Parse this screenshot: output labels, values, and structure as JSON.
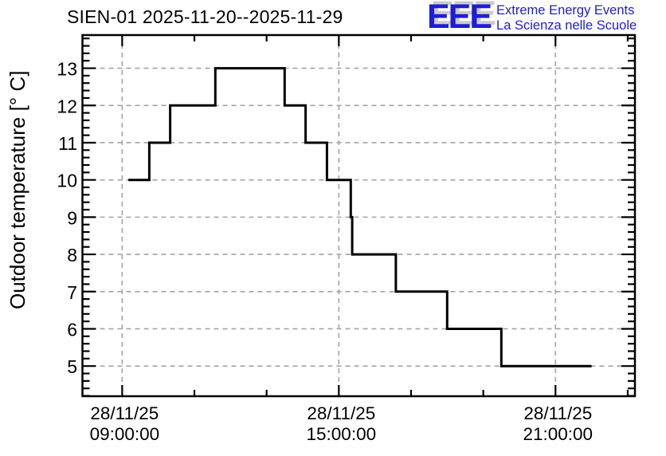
{
  "logo": {
    "acronym": "EEE",
    "line1": "Extreme Energy Events",
    "line2": "La Scienza nelle Scuole",
    "color": "#1d1dd6"
  },
  "chart_data": {
    "type": "line",
    "subtype": "step-after",
    "title": "SIEN-01 2025-11-20--2025-11-29",
    "station": "SIEN-01",
    "xlabel": "",
    "ylabel": "Outdoor temperature [° C]",
    "x_unit": "time of day on 28/11/25, decimal hours",
    "xlim": [
      7.9,
      23.2
    ],
    "ylim": [
      4.19,
      13.89
    ],
    "grid": true,
    "legend": false,
    "line_color": "#000000",
    "grid_color": "#a3a3a3",
    "y_major_ticks": [
      5,
      6,
      7,
      8,
      9,
      10,
      11,
      12,
      13
    ],
    "y_minor_step": 0.2,
    "x_minor_step_hours": 2,
    "x_major_ticks": [
      {
        "t": 9,
        "line1": "28/11/25",
        "line2": "09:00:00"
      },
      {
        "t": 15,
        "line1": "28/11/25",
        "line2": "15:00:00"
      },
      {
        "t": 21,
        "line1": "28/11/25",
        "line2": "21:00:00"
      }
    ],
    "points": [
      {
        "time": "09:10",
        "t_hours": 9.17,
        "temp": 10
      },
      {
        "time": "09:45",
        "t_hours": 9.75,
        "temp": 11
      },
      {
        "time": "10:20",
        "t_hours": 10.33,
        "temp": 12
      },
      {
        "time": "11:35",
        "t_hours": 11.58,
        "temp": 13
      },
      {
        "time": "13:30",
        "t_hours": 13.5,
        "temp": 12
      },
      {
        "time": "14:05",
        "t_hours": 14.08,
        "temp": 11
      },
      {
        "time": "14:40",
        "t_hours": 14.67,
        "temp": 10
      },
      {
        "time": "15:20",
        "t_hours": 15.33,
        "temp": 9
      },
      {
        "time": "15:22",
        "t_hours": 15.37,
        "temp": 8
      },
      {
        "time": "16:35",
        "t_hours": 16.58,
        "temp": 7
      },
      {
        "time": "18:00",
        "t_hours": 18.0,
        "temp": 6
      },
      {
        "time": "19:30",
        "t_hours": 19.5,
        "temp": 5
      }
    ],
    "x_end_hours": 22.0,
    "x_end_time": "22:00"
  }
}
